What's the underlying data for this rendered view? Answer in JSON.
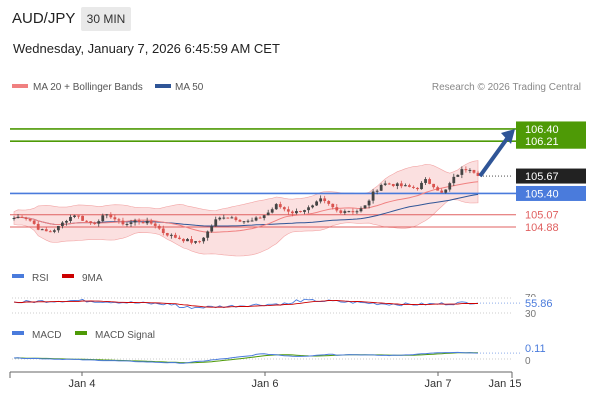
{
  "header": {
    "symbol": "AUD/JPY",
    "timeframe": "30 MIN",
    "datetime": "Wednesday, January 7, 2026 6:45:59 AM CET"
  },
  "legend": {
    "ma20_label": "MA 20 + Bollinger Bands",
    "ma50_label": "MA 50",
    "ma20_color": "#f08080",
    "ma50_color": "#2f5597",
    "credit": "Research © 2026 Trading Central"
  },
  "colors": {
    "resistance": "#4e9a06",
    "pivot": "#4a7bdc",
    "support": "#e06060",
    "current": "#222222",
    "arrow": "#2f5597",
    "candle_up": "#444444",
    "candle_down": "#d9534f"
  },
  "chart_data": [
    {
      "type": "candlestick",
      "ylim": [
        104.5,
        106.6
      ],
      "levels": [
        {
          "value": 106.4,
          "label": "106.40",
          "kind": "resistance"
        },
        {
          "value": 106.21,
          "label": "106.21",
          "kind": "resistance"
        },
        {
          "value": 105.67,
          "label": "105.67",
          "kind": "current"
        },
        {
          "value": 105.4,
          "label": "105.40",
          "kind": "pivot"
        },
        {
          "value": 105.07,
          "label": "105.07",
          "kind": "support"
        },
        {
          "value": 104.88,
          "label": "104.88",
          "kind": "support"
        }
      ],
      "close_path": [
        105.02,
        105.05,
        104.97,
        104.83,
        104.8,
        104.87,
        105.0,
        105.08,
        104.98,
        104.93,
        105.03,
        105.06,
        104.95,
        104.93,
        104.98,
        104.95,
        104.93,
        104.8,
        104.74,
        104.7,
        104.66,
        104.63,
        104.78,
        104.98,
        105.05,
        105.03,
        104.98,
        104.96,
        105.02,
        105.1,
        105.22,
        105.15,
        105.1,
        105.15,
        105.18,
        105.3,
        105.22,
        105.12,
        105.14,
        105.12,
        105.18,
        105.4,
        105.55,
        105.55,
        105.52,
        105.5,
        105.48,
        105.6,
        105.52,
        105.38,
        105.6,
        105.75,
        105.8,
        105.7
      ]
    },
    {
      "type": "line",
      "title": "RSI",
      "series": [
        {
          "name": "RSI"
        },
        {
          "name": "9MA"
        }
      ],
      "ticks": [
        "70",
        "30"
      ],
      "last_value": "55.86"
    },
    {
      "type": "line",
      "title": "MACD",
      "series": [
        {
          "name": "MACD"
        },
        {
          "name": "MACD Signal"
        }
      ],
      "ticks": [
        "0"
      ],
      "last_value": "0.11"
    }
  ],
  "x_axis": {
    "ticks": [
      "Jan 4",
      "Jan 6",
      "Jan 7",
      "Jan 15"
    ]
  }
}
